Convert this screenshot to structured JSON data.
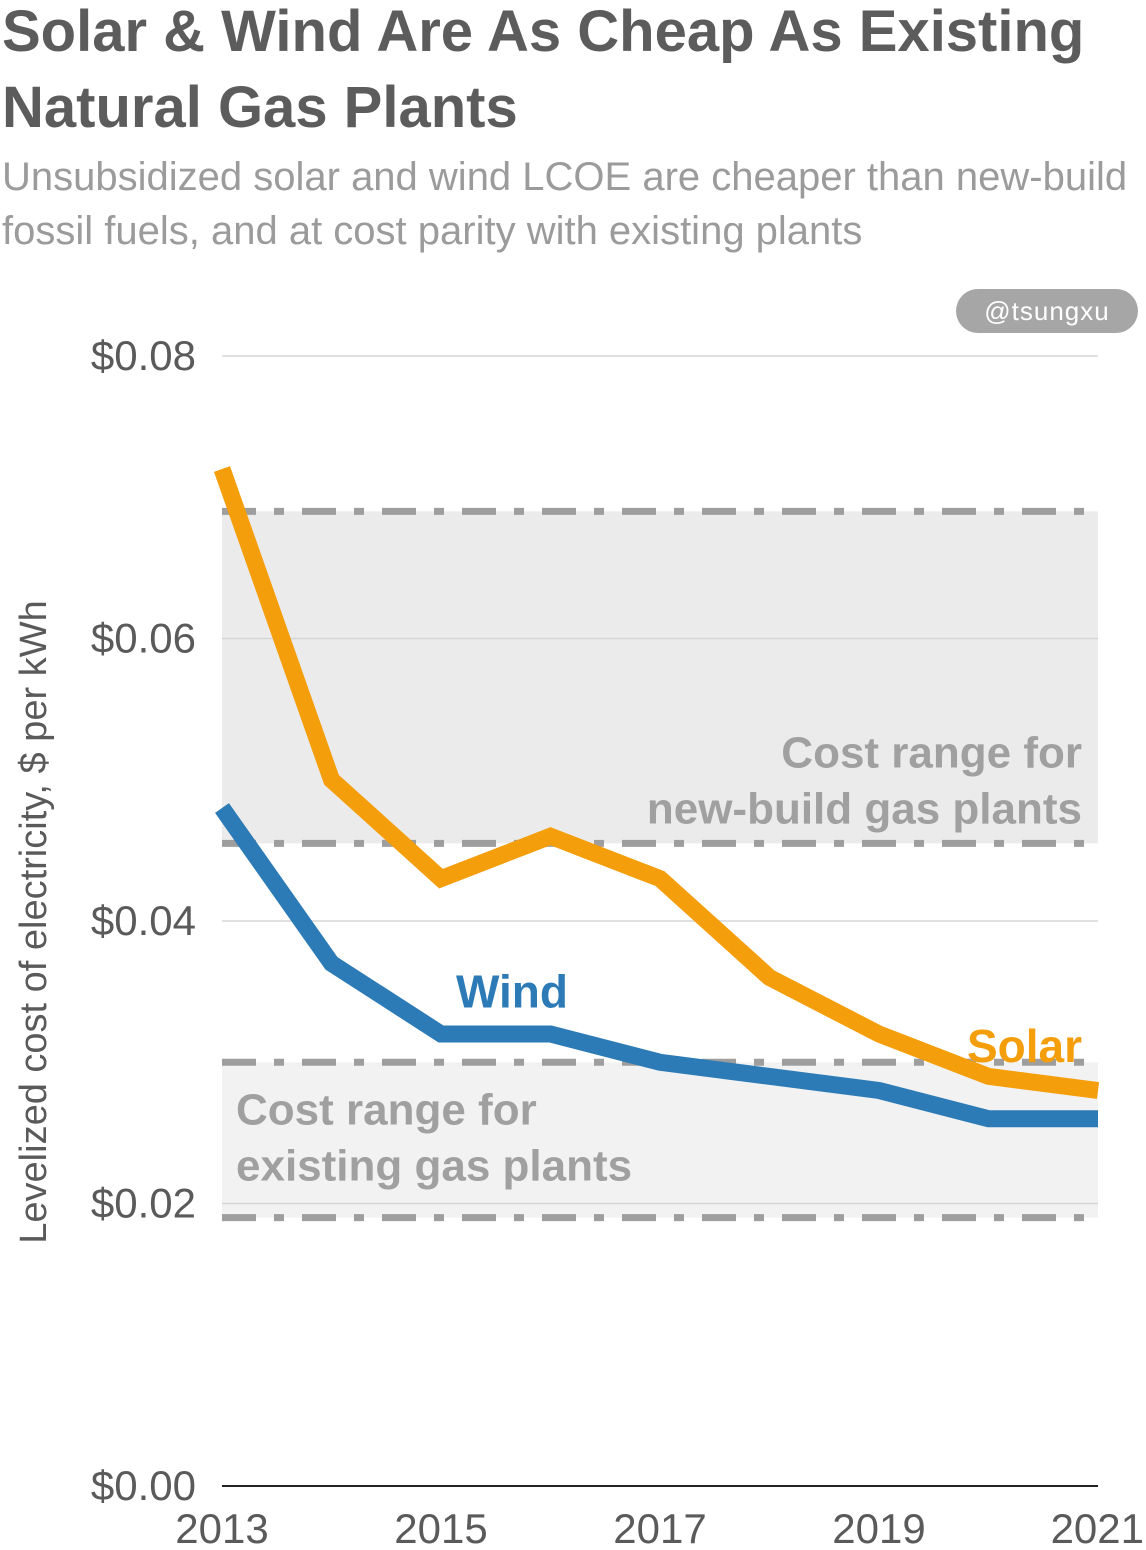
{
  "title": "Solar & Wind Are As Cheap As Existing Natural Gas Plants",
  "subtitle": "Unsubsidized solar and wind LCOE are cheaper than new-build fossil fuels, and at cost parity with existing plants",
  "handle": "@tsungxu",
  "chart_data": {
    "type": "line",
    "title": "Solar & Wind Are As Cheap As Existing Natural Gas Plants",
    "subtitle": "Unsubsidized solar and wind LCOE are cheaper than new-build fossil fuels, and at cost parity with existing plants",
    "xlabel": "",
    "ylabel": "Levelized cost of electricity, $ per kWh",
    "x": [
      2013,
      2014,
      2015,
      2016,
      2017,
      2018,
      2019,
      2020,
      2021
    ],
    "xlim": [
      2013,
      2021
    ],
    "ylim": [
      0,
      0.08
    ],
    "grid": true,
    "x_ticks": [
      {
        "value": 2013,
        "label": "2013"
      },
      {
        "value": 2015,
        "label": "2015"
      },
      {
        "value": 2017,
        "label": "2017"
      },
      {
        "value": 2019,
        "label": "2019"
      },
      {
        "value": 2021,
        "label": "2021"
      }
    ],
    "y_ticks": [
      {
        "value": 0,
        "label": "$0.00"
      },
      {
        "value": 0.02,
        "label": "$0.02"
      },
      {
        "value": 0.04,
        "label": "$0.04"
      },
      {
        "value": 0.06,
        "label": "$0.06"
      },
      {
        "value": 0.08,
        "label": "$0.08"
      }
    ],
    "series": [
      {
        "name": "Solar",
        "color": "#F59E0B",
        "values": [
          0.072,
          0.05,
          0.043,
          0.046,
          0.043,
          0.036,
          0.032,
          0.029,
          0.028
        ]
      },
      {
        "name": "Wind",
        "color": "#2C7BB6",
        "values": [
          0.048,
          0.037,
          0.032,
          0.032,
          0.03,
          0.029,
          0.028,
          0.026,
          0.026
        ]
      }
    ],
    "bands": [
      {
        "name": "new-build-gas",
        "label_lines": [
          "Cost range for",
          "new-build gas plants"
        ],
        "range": [
          0.0455,
          0.069
        ],
        "fill": "#ebebeb",
        "label_align": "right"
      },
      {
        "name": "existing-gas",
        "label_lines": [
          "Cost range for",
          "existing gas plants"
        ],
        "range": [
          0.019,
          0.03
        ],
        "fill": "#f2f2f2",
        "label_align": "left"
      }
    ],
    "annotations": [
      {
        "series": "Wind",
        "text": "Wind"
      },
      {
        "series": "Solar",
        "text": "Solar"
      }
    ]
  }
}
